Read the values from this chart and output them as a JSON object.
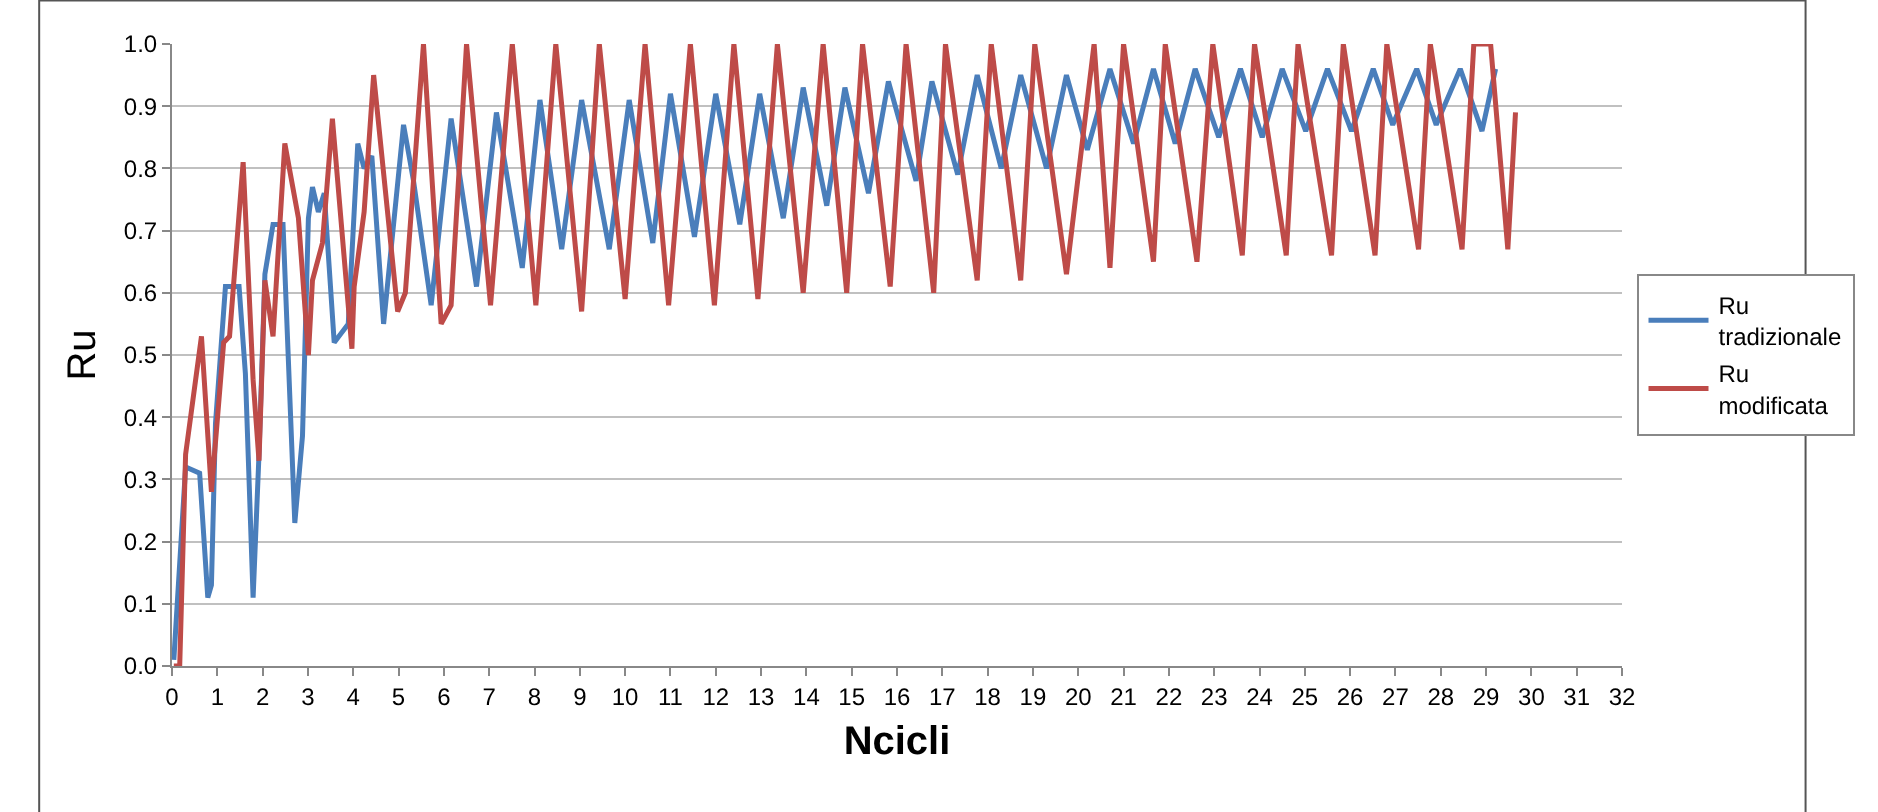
{
  "chart_data": {
    "type": "line",
    "xlabel": "Ncicli",
    "ylabel": "Ru",
    "xlim": [
      0,
      32
    ],
    "ylim": [
      0,
      1
    ],
    "xticks": [
      0,
      1,
      2,
      3,
      4,
      5,
      6,
      7,
      8,
      9,
      10,
      11,
      12,
      13,
      14,
      15,
      16,
      17,
      18,
      19,
      20,
      21,
      22,
      23,
      24,
      25,
      26,
      27,
      28,
      29,
      30,
      31,
      32
    ],
    "yticks": [
      {
        "value": 0,
        "label": "0.0"
      },
      0.1,
      0.2,
      0.3,
      0.4,
      0.5,
      0.6,
      0.7,
      0.8,
      0.9,
      {
        "value": 1,
        "label": "1.0"
      }
    ],
    "grid": "y",
    "legend": "right",
    "line_style": "solid",
    "series": [
      {
        "name": "Ru tradizionale",
        "color": "#4a7ebb",
        "x": [
          0.04,
          0.3,
          0.61,
          0.79,
          0.87,
          0.96,
          1.18,
          1.48,
          1.62,
          1.79,
          1.92,
          2.05,
          2.23,
          2.45,
          2.71,
          2.88,
          3.01,
          3.1,
          3.23,
          3.36,
          3.58,
          3.89,
          4.1,
          4.24,
          4.41,
          4.67,
          5.11,
          5.33,
          5.72,
          6.16,
          6.72,
          7.16,
          7.73,
          8.12,
          8.6,
          9.04,
          9.65,
          10.09,
          10.61,
          11.0,
          11.53,
          12.0,
          12.53,
          12.97,
          13.49,
          13.93,
          14.45,
          14.85,
          15.37,
          15.81,
          16.42,
          16.77,
          17.34,
          17.77,
          18.3,
          18.73,
          19.3,
          19.74,
          20.2,
          20.7,
          21.22,
          21.66,
          22.14,
          22.58,
          23.1,
          23.58,
          24.06,
          24.5,
          25.02,
          25.5,
          26.03,
          26.51,
          26.94,
          27.47,
          27.9,
          28.43,
          28.91,
          29.21
        ],
        "values": [
          0.01,
          0.32,
          0.31,
          0.11,
          0.13,
          0.39,
          0.61,
          0.61,
          0.47,
          0.11,
          0.34,
          0.63,
          0.71,
          0.71,
          0.23,
          0.37,
          0.72,
          0.77,
          0.73,
          0.76,
          0.52,
          0.55,
          0.84,
          0.8,
          0.82,
          0.55,
          0.87,
          0.78,
          0.58,
          0.88,
          0.61,
          0.89,
          0.64,
          0.91,
          0.67,
          0.91,
          0.67,
          0.91,
          0.68,
          0.92,
          0.69,
          0.92,
          0.71,
          0.92,
          0.72,
          0.93,
          0.74,
          0.93,
          0.76,
          0.94,
          0.78,
          0.94,
          0.79,
          0.95,
          0.8,
          0.95,
          0.8,
          0.95,
          0.83,
          0.96,
          0.84,
          0.96,
          0.84,
          0.96,
          0.85,
          0.96,
          0.85,
          0.96,
          0.86,
          0.96,
          0.86,
          0.96,
          0.87,
          0.96,
          0.87,
          0.96,
          0.86,
          0.96
        ]
      },
      {
        "name": "Ru modificata",
        "color": "#be4b48",
        "x": [
          0.04,
          0.17,
          0.3,
          0.65,
          0.87,
          1.14,
          1.27,
          1.57,
          1.79,
          1.92,
          2.05,
          2.23,
          2.49,
          2.79,
          3.01,
          3.1,
          3.32,
          3.54,
          3.97,
          4.02,
          4.24,
          4.45,
          4.98,
          5.15,
          5.55,
          5.94,
          6.16,
          6.5,
          7.03,
          7.51,
          8.03,
          8.47,
          9.04,
          9.43,
          10.0,
          10.44,
          10.96,
          11.44,
          11.97,
          12.4,
          12.93,
          13.36,
          13.93,
          14.37,
          14.89,
          15.24,
          15.85,
          16.2,
          16.81,
          17.07,
          17.77,
          18.08,
          18.73,
          19.04,
          19.74,
          20.35,
          20.7,
          21.0,
          21.66,
          21.92,
          22.62,
          22.97,
          23.62,
          23.89,
          24.59,
          24.85,
          25.59,
          25.85,
          26.55,
          26.81,
          27.51,
          27.77,
          28.47,
          28.73,
          29.1,
          29.48,
          29.65
        ],
        "values": [
          0.0,
          0.0,
          0.34,
          0.53,
          0.28,
          0.52,
          0.53,
          0.81,
          0.46,
          0.33,
          0.62,
          0.53,
          0.84,
          0.72,
          0.5,
          0.62,
          0.68,
          0.88,
          0.51,
          0.61,
          0.73,
          0.95,
          0.57,
          0.6,
          1.0,
          0.55,
          0.58,
          1.0,
          0.58,
          1.0,
          0.58,
          1.0,
          0.57,
          1.0,
          0.59,
          1.0,
          0.58,
          1.0,
          0.58,
          1.0,
          0.59,
          1.0,
          0.6,
          1.0,
          0.6,
          1.0,
          0.61,
          1.0,
          0.6,
          1.0,
          0.62,
          1.0,
          0.62,
          1.0,
          0.63,
          1.0,
          0.64,
          1.0,
          0.65,
          1.0,
          0.65,
          1.0,
          0.66,
          1.0,
          0.66,
          1.0,
          0.66,
          1.0,
          0.66,
          1.0,
          0.67,
          1.0,
          0.67,
          1.0,
          1.0,
          0.67,
          0.89
        ]
      }
    ]
  }
}
